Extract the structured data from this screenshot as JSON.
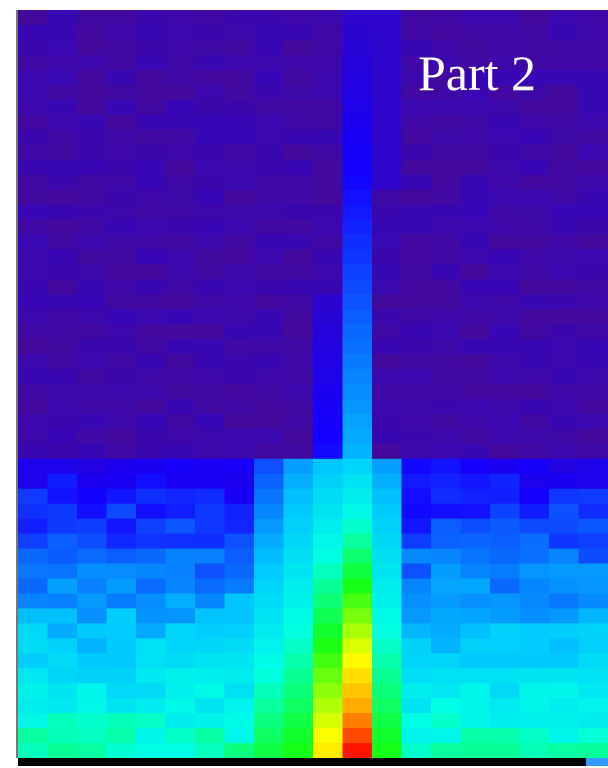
{
  "label": "Part 2"
}
